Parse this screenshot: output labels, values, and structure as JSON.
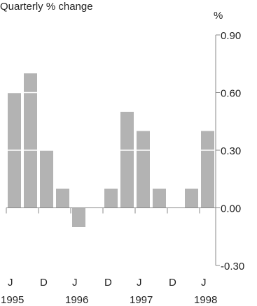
{
  "chart_data": {
    "type": "bar",
    "title": "Quarterly % change",
    "ylabel": "%",
    "ylim": [
      -0.3,
      0.9
    ],
    "yticks": [
      {
        "value": 0.9,
        "label": "0.90"
      },
      {
        "value": 0.6,
        "label": "0.60"
      },
      {
        "value": 0.3,
        "label": "0.30"
      },
      {
        "value": 0.0,
        "label": "0.00"
      },
      {
        "value": -0.3,
        "label": "-0.30"
      }
    ],
    "categories": [
      "Jun 1995",
      "Sep 1995",
      "Dec 1995",
      "Mar 1996",
      "Jun 1996",
      "Sep 1996",
      "Dec 1996",
      "Mar 1997",
      "Jun 1997",
      "Sep 1997",
      "Dec 1997",
      "Mar 1998",
      "Jun 1998"
    ],
    "values": [
      0.6,
      0.7,
      0.3,
      0.1,
      -0.1,
      null,
      0.1,
      0.5,
      0.4,
      0.1,
      null,
      0.1,
      0.4
    ],
    "x_month_labels": [
      {
        "index": 0,
        "label": "J"
      },
      {
        "index": 2,
        "label": "D"
      },
      {
        "index": 4,
        "label": "J"
      },
      {
        "index": 6,
        "label": "D"
      },
      {
        "index": 8,
        "label": "J"
      },
      {
        "index": 10,
        "label": "D"
      },
      {
        "index": 12,
        "label": "J"
      }
    ],
    "x_year_labels": [
      {
        "index": 0,
        "label": "1995"
      },
      {
        "index": 4,
        "label": "1996"
      },
      {
        "index": 8,
        "label": "1997"
      },
      {
        "index": 12,
        "label": "1998"
      }
    ],
    "grid": "horizontal white lines across bars",
    "colors": {
      "bar": "#b3b3b3",
      "axis": "#8a8a8a",
      "grid": "#ffffff",
      "text": "#222222"
    }
  }
}
